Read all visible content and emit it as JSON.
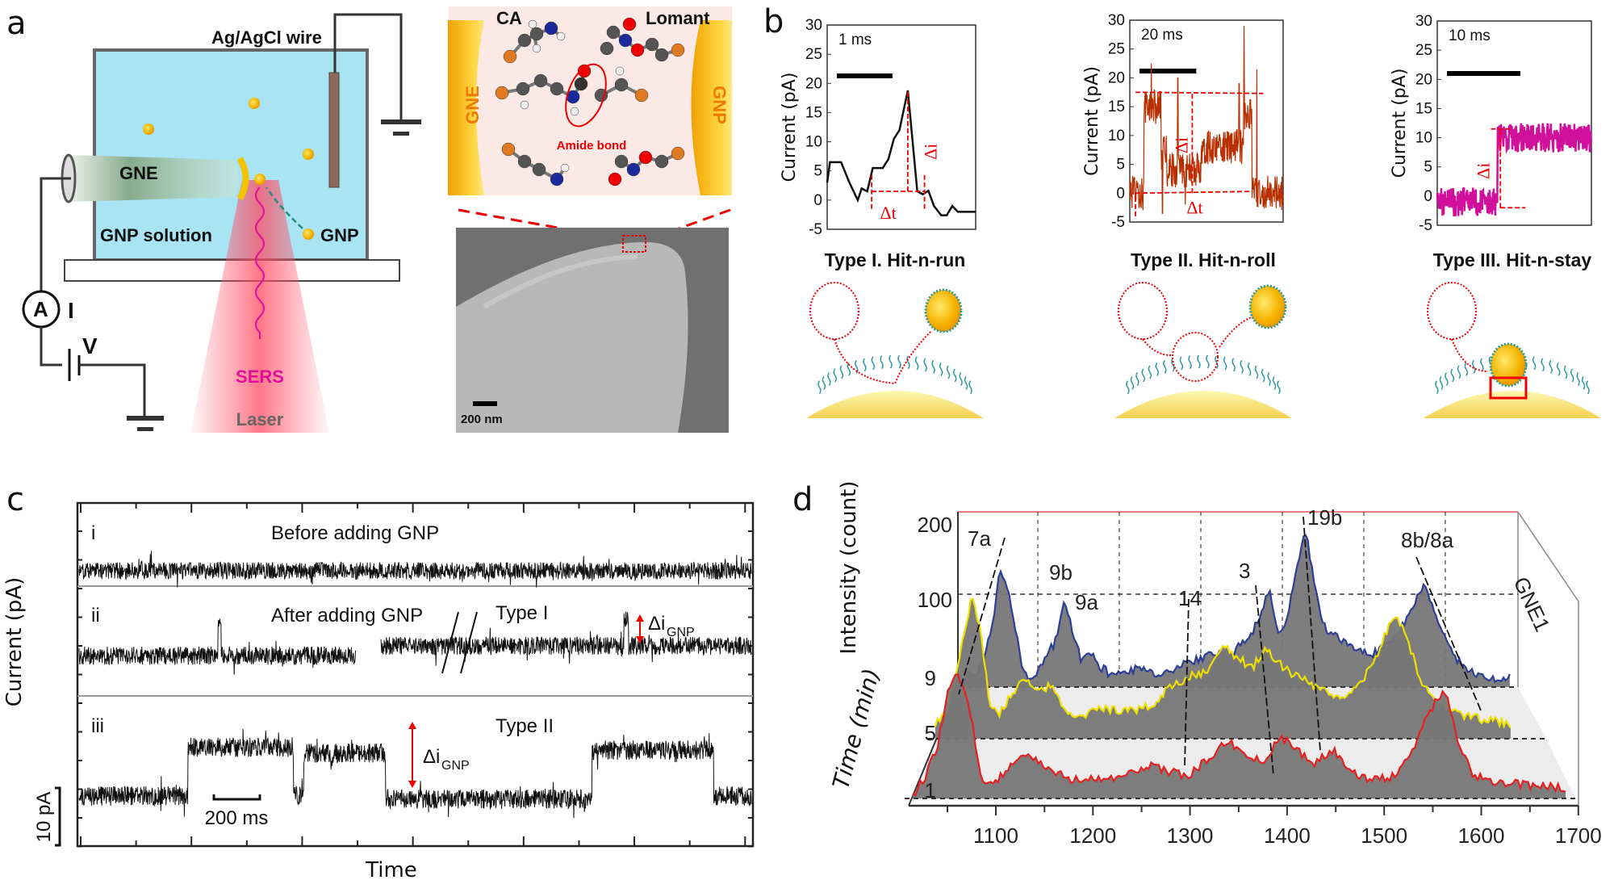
{
  "panel_labels": {
    "a": "a",
    "b": "b",
    "c": "c",
    "d": "d"
  },
  "panel_a": {
    "wire_label": "Ag/AgCl wire",
    "gne_label": "GNE",
    "solution_label": "GNP solution",
    "gnp_label": "GNP",
    "ammeter_symbol": "A",
    "current_label": "I",
    "voltage_label": "V",
    "sers_label": "SERS",
    "laser_label": "Laser",
    "inset": {
      "ca_label": "CA",
      "lomant_label": "Lomant",
      "gne_label": "GNE",
      "gnp_label": "GNP",
      "bond_label": "Amide bond"
    },
    "sem": {
      "scale_label": "200 nm"
    },
    "colors": {
      "solution": "#a8e4f4",
      "gold": "#f5b400",
      "laser": "#ff5a6e",
      "sers": "#e0109a"
    }
  },
  "panel_b": {
    "ylabel": "Current (pA)",
    "yticks": [
      "30",
      "25",
      "20",
      "15",
      "10",
      "5",
      "0",
      "-5"
    ],
    "charts": [
      {
        "title": "Type I. Hit-n-run",
        "scale_bar": "1 ms",
        "scale_ms": 1,
        "span_ms": 2.67,
        "color": "#111111",
        "dt_label": "Δt",
        "di_label": "Δi",
        "points": [
          [
            0,
            3
          ],
          [
            0.05,
            6.5
          ],
          [
            0.25,
            6.5
          ],
          [
            0.4,
            3
          ],
          [
            0.55,
            0
          ],
          [
            0.62,
            2
          ],
          [
            0.72,
            1.5
          ],
          [
            0.82,
            5.5
          ],
          [
            1.0,
            5.5
          ],
          [
            1.1,
            7
          ],
          [
            1.2,
            10.5
          ],
          [
            1.3,
            12
          ],
          [
            1.45,
            18.8
          ],
          [
            1.62,
            1.5
          ],
          [
            1.72,
            1
          ],
          [
            1.82,
            1.6
          ],
          [
            1.92,
            -1
          ],
          [
            2.05,
            -2.6
          ],
          [
            2.15,
            -2.6
          ],
          [
            2.25,
            -1
          ],
          [
            2.35,
            -2
          ],
          [
            2.67,
            -2
          ]
        ]
      },
      {
        "title": "Type II. Hit-n-roll",
        "scale_bar": "20 ms",
        "scale_ms": 20,
        "span_ms": 54,
        "color": "#b83000",
        "dt_label": "Δt",
        "di_label": "Δi",
        "levels": [
          [
            0,
            5,
            0
          ],
          [
            5,
            11,
            15
          ],
          [
            11,
            13,
            7
          ],
          [
            13,
            25,
            4
          ],
          [
            25,
            40,
            8
          ],
          [
            40,
            43,
            14
          ],
          [
            43,
            54,
            0
          ]
        ],
        "spikes": [
          [
            7.6,
            22.5
          ],
          [
            11.5,
            -3.5
          ],
          [
            16.9,
            20
          ],
          [
            19.5,
            -2
          ],
          [
            38.5,
            19
          ],
          [
            40.2,
            29
          ],
          [
            44.7,
            21.5
          ]
        ]
      },
      {
        "title": "Type III. Hit-n-stay",
        "scale_bar": "10 ms",
        "scale_ms": 10,
        "span_ms": 21,
        "color": "#d0109a",
        "di_label": "Δi",
        "levels": [
          [
            0,
            8.2,
            -1
          ],
          [
            8.2,
            21,
            10
          ]
        ]
      }
    ]
  },
  "panel_c": {
    "ylabel": "Current (pA)",
    "xlabel": "Time",
    "scale_y_label": "10 pA",
    "scale_x_label": "200 ms",
    "traces": [
      {
        "roman": "i",
        "title": "Before adding GNP"
      },
      {
        "roman": "ii",
        "title": "After adding GNP",
        "type_label": "Type I",
        "delta_label": "Δi",
        "delta_sub": "GNP"
      },
      {
        "roman": "iii",
        "type_label": "Type II",
        "delta_label": "Δi",
        "delta_sub": "GNP"
      }
    ],
    "trace_iii_levels_ms": [
      [
        0,
        480,
        0
      ],
      [
        480,
        940,
        8.5
      ],
      [
        940,
        985,
        0
      ],
      [
        985,
        1340,
        7.5
      ],
      [
        1340,
        2240,
        -0.5
      ],
      [
        2240,
        2770,
        8
      ],
      [
        2770,
        2940,
        0
      ]
    ]
  },
  "chart_data": {
    "type": "line",
    "xlabel": "",
    "ylabel": "Intensity (count)",
    "zlabel": "Time (min)",
    "xlim": [
      1014,
      1700
    ],
    "xticks": [
      "1100",
      "1200",
      "1300",
      "1400",
      "1500",
      "1600",
      "1700"
    ],
    "yticks": [
      "200",
      "100"
    ],
    "time_ticks": [
      "9",
      "5",
      "1"
    ],
    "side_label": "GNE1",
    "peak_labels": [
      "7a",
      "9b",
      "9a",
      "14",
      "3",
      "19b",
      "8b/8a"
    ],
    "series": [
      {
        "time_min": 9,
        "color": "#2b3f98",
        "points": [
          [
            1020,
            10
          ],
          [
            1040,
            20
          ],
          [
            1055,
            60
          ],
          [
            1065,
            130
          ],
          [
            1075,
            110
          ],
          [
            1085,
            60
          ],
          [
            1095,
            15
          ],
          [
            1105,
            10
          ],
          [
            1120,
            30
          ],
          [
            1135,
            55
          ],
          [
            1145,
            98
          ],
          [
            1155,
            60
          ],
          [
            1165,
            30
          ],
          [
            1175,
            40
          ],
          [
            1185,
            25
          ],
          [
            1200,
            15
          ],
          [
            1230,
            20
          ],
          [
            1260,
            15
          ],
          [
            1290,
            25
          ],
          [
            1320,
            35
          ],
          [
            1350,
            40
          ],
          [
            1370,
            55
          ],
          [
            1385,
            80
          ],
          [
            1395,
            110
          ],
          [
            1405,
            65
          ],
          [
            1415,
            70
          ],
          [
            1430,
            140
          ],
          [
            1440,
            175
          ],
          [
            1450,
            120
          ],
          [
            1460,
            70
          ],
          [
            1480,
            55
          ],
          [
            1500,
            45
          ],
          [
            1520,
            35
          ],
          [
            1540,
            50
          ],
          [
            1560,
            70
          ],
          [
            1575,
            100
          ],
          [
            1585,
            113
          ],
          [
            1595,
            90
          ],
          [
            1610,
            55
          ],
          [
            1625,
            30
          ],
          [
            1645,
            15
          ],
          [
            1670,
            10
          ],
          [
            1690,
            10
          ]
        ]
      },
      {
        "time_min": 5,
        "color": "#f0e000",
        "points": [
          [
            1014,
            15
          ],
          [
            1030,
            40
          ],
          [
            1045,
            110
          ],
          [
            1055,
            163
          ],
          [
            1065,
            120
          ],
          [
            1075,
            40
          ],
          [
            1085,
            25
          ],
          [
            1100,
            50
          ],
          [
            1115,
            70
          ],
          [
            1130,
            55
          ],
          [
            1145,
            60
          ],
          [
            1160,
            30
          ],
          [
            1175,
            25
          ],
          [
            1200,
            35
          ],
          [
            1230,
            30
          ],
          [
            1260,
            40
          ],
          [
            1280,
            61
          ],
          [
            1300,
            70
          ],
          [
            1320,
            75
          ],
          [
            1340,
            104
          ],
          [
            1355,
            90
          ],
          [
            1370,
            80
          ],
          [
            1385,
            101
          ],
          [
            1400,
            85
          ],
          [
            1420,
            70
          ],
          [
            1450,
            55
          ],
          [
            1470,
            46
          ],
          [
            1490,
            60
          ],
          [
            1510,
            95
          ],
          [
            1530,
            141
          ],
          [
            1545,
            110
          ],
          [
            1560,
            60
          ],
          [
            1580,
            40
          ],
          [
            1610,
            25
          ],
          [
            1640,
            20
          ],
          [
            1660,
            15
          ]
        ]
      },
      {
        "time_min": 1,
        "color": "#e52020",
        "points": [
          [
            1014,
            5
          ],
          [
            1025,
            20
          ],
          [
            1040,
            60
          ],
          [
            1050,
            120
          ],
          [
            1060,
            141
          ],
          [
            1072,
            110
          ],
          [
            1085,
            20
          ],
          [
            1100,
            20
          ],
          [
            1115,
            35
          ],
          [
            1130,
            52
          ],
          [
            1145,
            40
          ],
          [
            1160,
            30
          ],
          [
            1180,
            21
          ],
          [
            1200,
            22
          ],
          [
            1230,
            25
          ],
          [
            1260,
            39
          ],
          [
            1280,
            30
          ],
          [
            1300,
            25
          ],
          [
            1320,
            45
          ],
          [
            1340,
            64
          ],
          [
            1360,
            50
          ],
          [
            1375,
            40
          ],
          [
            1395,
            70
          ],
          [
            1410,
            55
          ],
          [
            1430,
            40
          ],
          [
            1450,
            55
          ],
          [
            1465,
            30
          ],
          [
            1490,
            21
          ],
          [
            1510,
            25
          ],
          [
            1530,
            50
          ],
          [
            1550,
            100
          ],
          [
            1565,
            122
          ],
          [
            1580,
            60
          ],
          [
            1595,
            25
          ],
          [
            1620,
            18
          ],
          [
            1650,
            15
          ],
          [
            1690,
            12
          ]
        ]
      }
    ]
  }
}
